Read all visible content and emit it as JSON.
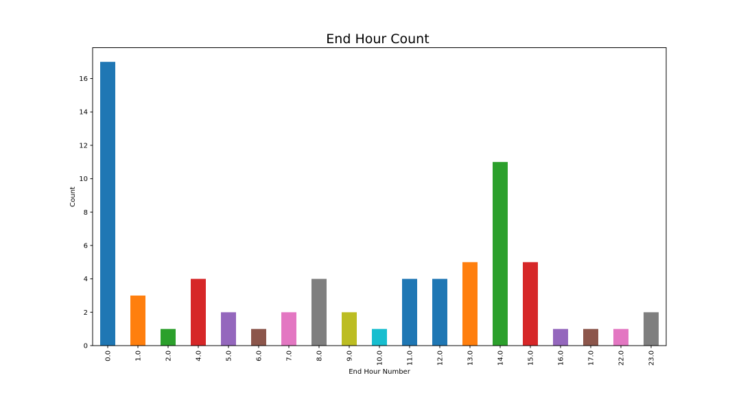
{
  "chart_data": {
    "type": "bar",
    "title": "End Hour Count",
    "xlabel": "End Hour Number",
    "ylabel": "Count",
    "categories": [
      "0.0",
      "1.0",
      "2.0",
      "4.0",
      "5.0",
      "6.0",
      "7.0",
      "8.0",
      "9.0",
      "10.0",
      "11.0",
      "12.0",
      "13.0",
      "14.0",
      "15.0",
      "16.0",
      "17.0",
      "22.0",
      "23.0"
    ],
    "values": [
      17,
      3,
      1,
      4,
      2,
      1,
      2,
      4,
      2,
      1,
      4,
      4,
      5,
      11,
      5,
      1,
      1,
      1,
      2
    ],
    "bar_colors": [
      "#1f77b4",
      "#ff7f0e",
      "#2ca02c",
      "#d62728",
      "#9467bd",
      "#8c564b",
      "#e377c2",
      "#7f7f7f",
      "#bcbd22",
      "#17becf",
      "#1f77b4",
      "#1f77b4",
      "#ff7f0e",
      "#2ca02c",
      "#d62728",
      "#9467bd",
      "#8c564b",
      "#e377c2",
      "#7f7f7f"
    ],
    "ylim": [
      0,
      17.85
    ],
    "yticks": [
      0,
      2,
      4,
      6,
      8,
      10,
      12,
      14,
      16
    ],
    "grid": false,
    "legend": "none"
  }
}
